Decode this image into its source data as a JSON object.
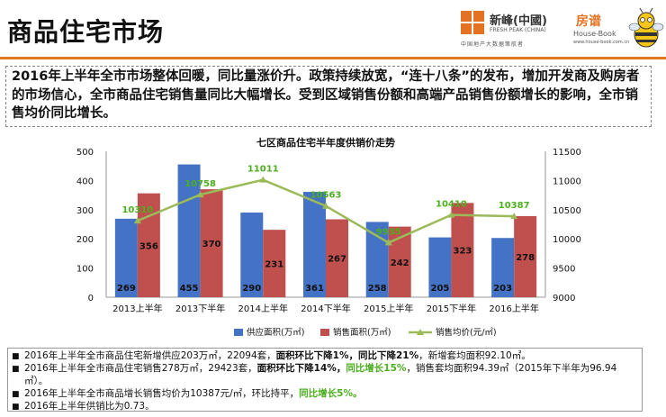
{
  "page": {
    "title": "商品住宅市场"
  },
  "brand": {
    "name": "新峰(中國)",
    "english": "FRESH PEAK (CHINA)",
    "slogan": "中国地产大数据策航者",
    "partner_name": "房谱",
    "partner_english": "House-Book",
    "partner_site": "www.house-book.com.cn"
  },
  "summary": {
    "text": "2016年上半年全市市场整体回暖，同比量涨价升。政策持续放宽，“连十八条”的发布，增加开发商及购房者的市场信心，全市商品住宅销售量同比大幅增长。受到区域销售份额和高端产品销售份额增长的影响，全市销售均价同比增长。"
  },
  "chart_data": {
    "type": "bar",
    "title": "七区商品住宅半年度供销价走势",
    "categories": [
      "2013上半年",
      "2013下半年",
      "2014上半年",
      "2014下半年",
      "2015上半年",
      "2015下半年",
      "2016上半年"
    ],
    "series": [
      {
        "name": "供应面积(万㎡)",
        "type": "bar",
        "axis": "left",
        "color": "#4472c4",
        "values": [
          269,
          455,
          290,
          361,
          258,
          205,
          203
        ]
      },
      {
        "name": "销售面积(万㎡)",
        "type": "bar",
        "axis": "left",
        "color": "#c0504d",
        "values": [
          356,
          370,
          231,
          267,
          242,
          323,
          278
        ]
      },
      {
        "name": "销售均价(元/㎡)",
        "type": "line",
        "axis": "right",
        "color": "#9bbb59",
        "values": [
          10310,
          10758,
          11011,
          10563,
          9935,
          10410,
          10387
        ]
      }
    ],
    "yticks_left": [
      "0",
      "100",
      "200",
      "300",
      "400",
      "500"
    ],
    "yticks_right": [
      "9000",
      "9500",
      "10000",
      "10500",
      "11000",
      "11500"
    ],
    "ylim_left": [
      0,
      500
    ],
    "ylim_right": [
      9000,
      11500
    ],
    "price_labels": [
      "10310",
      "10758",
      "11011",
      "10563",
      "9935",
      "10410",
      "10387"
    ],
    "legend_position": "bottom",
    "grid": false
  },
  "notes": [
    {
      "segments": [
        {
          "text": "2016年上半年全市商品住宅新增供应203万㎡，22094套，",
          "style": ""
        },
        {
          "text": "面积环比下降1%，同比下降21%",
          "style": "strong"
        },
        {
          "text": "，新增套均面积92.10㎡。",
          "style": ""
        }
      ]
    },
    {
      "segments": [
        {
          "text": "2016年上半年全市商品住宅销售278万㎡，29423套，",
          "style": ""
        },
        {
          "text": "面积环比下降14%，",
          "style": "strong"
        },
        {
          "text": "同比增长15%",
          "style": "green"
        },
        {
          "text": "，销售套均面积94.39㎡（2015年下半年为96.94㎡）。",
          "style": ""
        }
      ]
    },
    {
      "segments": [
        {
          "text": "2016年上半年全市商品增长销售均价为10387元/㎡，环比持平，",
          "style": ""
        },
        {
          "text": "同比增长5%。",
          "style": "green"
        }
      ]
    },
    {
      "segments": [
        {
          "text": "2016年上半年供销比为0.73。",
          "style": ""
        }
      ]
    }
  ],
  "colors": {
    "accent": "#e0781f",
    "supply": "#4472c4",
    "sales": "#c0504d",
    "price": "#9bbb59",
    "highlight": "#4caf1e"
  }
}
